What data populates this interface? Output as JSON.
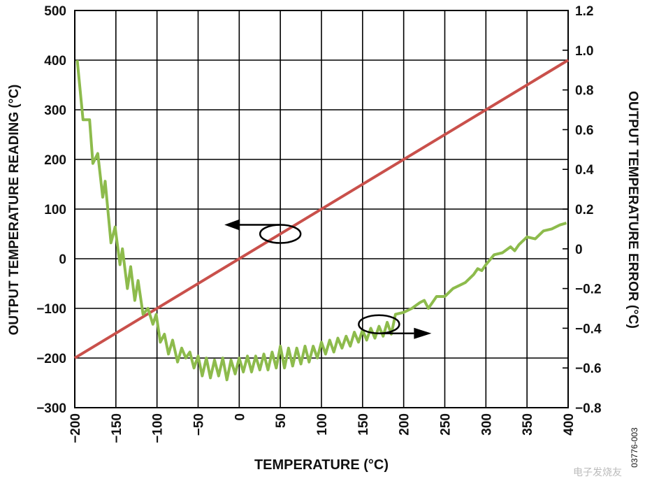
{
  "chart_data": {
    "type": "line",
    "title": "",
    "xlabel": "TEMPERATURE (°C)",
    "ylabel_left": "OUTPUT TEMPERATURE READING (°C)",
    "ylabel_right": "OUTPUT TEMPERATURE ERROR (°C)",
    "xlim": [
      -200,
      400
    ],
    "ylim_left": [
      -300,
      500
    ],
    "ylim_right": [
      -0.8,
      1.2
    ],
    "grid": true,
    "x_ticks": [
      "−200",
      "−150",
      "−100",
      "−50",
      "0",
      "50",
      "100",
      "150",
      "200",
      "250",
      "300",
      "350",
      "400"
    ],
    "y_left_ticks": [
      "500",
      "400",
      "300",
      "200",
      "100",
      "0",
      "−100",
      "−200",
      "−300"
    ],
    "y_right_ticks": [
      "1.2",
      "1.0",
      "0.8",
      "0.6",
      "0.4",
      "0.2",
      "0",
      "−0.2",
      "−0.4",
      "−0.6",
      "−0.8"
    ],
    "series": [
      {
        "axis": "left",
        "color": "#c9504b",
        "x": [
          -200,
          400
        ],
        "y": [
          -200,
          400
        ]
      },
      {
        "axis": "right",
        "color": "#8dbb4c",
        "x": [
          -197,
          -190,
          -182,
          -178,
          -172,
          -166,
          -163,
          -156,
          -151,
          -145,
          -142,
          -136,
          -132,
          -127,
          -123,
          -117,
          -111,
          -105,
          -101,
          -96,
          -91,
          -86,
          -81,
          -75,
          -70,
          -65,
          -60,
          -55,
          -50,
          -45,
          -40,
          -35,
          -30,
          -25,
          -20,
          -15,
          -10,
          -5,
          0,
          5,
          10,
          15,
          20,
          25,
          30,
          35,
          40,
          45,
          50,
          55,
          60,
          65,
          70,
          75,
          80,
          85,
          90,
          95,
          100,
          105,
          110,
          115,
          120,
          125,
          130,
          135,
          140,
          145,
          150,
          155,
          160,
          165,
          170,
          175,
          180,
          185,
          190,
          200,
          210,
          220,
          225,
          230,
          240,
          250,
          260,
          270,
          275,
          285,
          290,
          295,
          300,
          310,
          320,
          330,
          335,
          340,
          350,
          360,
          370,
          380,
          390,
          398
        ],
        "y": [
          0.95,
          0.65,
          0.65,
          0.43,
          0.48,
          0.26,
          0.34,
          0.03,
          0.11,
          -0.08,
          0.0,
          -0.2,
          -0.09,
          -0.26,
          -0.16,
          -0.33,
          -0.3,
          -0.38,
          -0.33,
          -0.47,
          -0.43,
          -0.53,
          -0.46,
          -0.57,
          -0.5,
          -0.55,
          -0.52,
          -0.6,
          -0.54,
          -0.64,
          -0.55,
          -0.65,
          -0.56,
          -0.64,
          -0.55,
          -0.66,
          -0.56,
          -0.63,
          -0.55,
          -0.62,
          -0.54,
          -0.62,
          -0.54,
          -0.61,
          -0.53,
          -0.61,
          -0.52,
          -0.6,
          -0.49,
          -0.6,
          -0.5,
          -0.59,
          -0.5,
          -0.58,
          -0.49,
          -0.57,
          -0.49,
          -0.55,
          -0.47,
          -0.53,
          -0.46,
          -0.52,
          -0.45,
          -0.5,
          -0.44,
          -0.49,
          -0.42,
          -0.47,
          -0.41,
          -0.46,
          -0.4,
          -0.45,
          -0.39,
          -0.44,
          -0.37,
          -0.43,
          -0.33,
          -0.32,
          -0.3,
          -0.27,
          -0.26,
          -0.3,
          -0.24,
          -0.24,
          -0.2,
          -0.18,
          -0.17,
          -0.13,
          -0.1,
          -0.11,
          -0.08,
          -0.03,
          -0.02,
          0.01,
          -0.01,
          0.02,
          0.06,
          0.05,
          0.09,
          0.1,
          0.12,
          0.13
        ]
      }
    ],
    "annotations": [
      {
        "type": "ellipse-arrow",
        "target_series": 0,
        "at": [
          50,
          50
        ],
        "direction": "left"
      },
      {
        "type": "ellipse-arrow",
        "target_series": 1,
        "at": [
          170,
          -0.38
        ],
        "direction": "right"
      }
    ],
    "figure_id": "03776-003",
    "watermark": "电子发烧友"
  }
}
